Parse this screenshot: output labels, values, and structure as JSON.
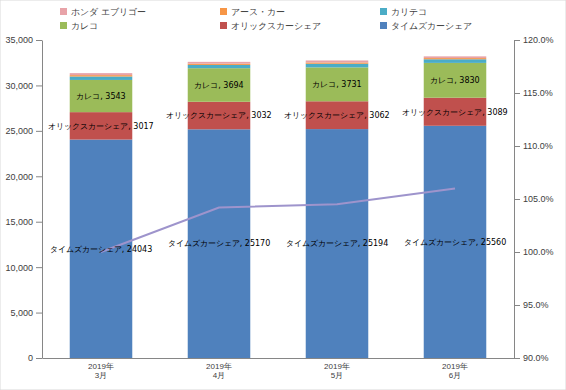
{
  "chart_data": {
    "type": "bar",
    "stacked": true,
    "grid": false,
    "legend": "top",
    "categories": [
      "2019年\n3月",
      "2019年\n4月",
      "2019年\n5月",
      "2019年\n6月"
    ],
    "ylim": [
      0,
      35000
    ],
    "yticks": [
      0,
      {
        "value": 5000,
        "label": "5,000"
      },
      {
        "value": 10000,
        "label": "10,000"
      },
      {
        "value": 15000,
        "label": "15,000"
      },
      {
        "value": 20000,
        "label": "20,000"
      },
      {
        "value": 25000,
        "label": "25,000"
      },
      {
        "value": 30000,
        "label": "30,000"
      },
      {
        "value": 35000,
        "label": "35,000"
      }
    ],
    "y2lim": [
      90,
      120
    ],
    "y2ticks": [
      {
        "value": 90,
        "label": "90.0%"
      },
      {
        "value": 95,
        "label": "95.0%"
      },
      {
        "value": 100,
        "label": "100.0%"
      },
      {
        "value": 105,
        "label": "105.0%"
      },
      {
        "value": 110,
        "label": "110.0%"
      },
      {
        "value": 115,
        "label": "115.0%"
      },
      {
        "value": 120,
        "label": "120.0%"
      }
    ],
    "series": [
      {
        "name": "タイムズカーシェア",
        "color": "#4f81bd",
        "values": [
          24043,
          25170,
          25194,
          25560
        ],
        "data_labels": true,
        "value_labels": [
          "タイムズカーシェア, 24043",
          "タイムズカーシェア, 25170",
          "タイムズカーシェア, 25194",
          "タイムズカーシェア, 25560"
        ]
      },
      {
        "name": "オリックスカーシェア",
        "color": "#c0504d",
        "values": [
          3017,
          3032,
          3062,
          3089
        ],
        "data_labels": true,
        "value_labels": [
          "オリックスカーシェア, 3017",
          "オリックスカーシェア, 3032",
          "オリックスカーシェア, 3062",
          "オリックスカーシェア, 3089"
        ]
      },
      {
        "name": "カレコ",
        "color": "#9bbb59",
        "values": [
          3543,
          3694,
          3731,
          3830
        ],
        "data_labels": true,
        "value_labels": [
          "カレコ, 3543",
          "カレコ, 3694",
          "カレコ, 3731",
          "カレコ, 3830"
        ]
      },
      {
        "name": "カリテコ",
        "color": "#4bacc6",
        "values": [
          380,
          360,
          400,
          400
        ]
      },
      {
        "name": "アース・カー",
        "color": "#f79646",
        "values": [
          150,
          140,
          140,
          130
        ]
      },
      {
        "name": "ホンダ エブリゴー",
        "color": "#e8a3a8",
        "values": [
          220,
          200,
          220,
          190
        ]
      },
      {
        "type": "line",
        "axis": "y2",
        "color": "#9e94cc",
        "values": [
          100.0,
          104.2,
          104.5,
          106.0
        ]
      }
    ]
  }
}
